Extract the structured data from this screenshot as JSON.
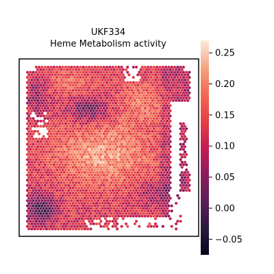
{
  "chart_data": {
    "type": "heatmap",
    "title_line1": "UKF334",
    "title_line2": "Heme Metabolism activity",
    "colorbar": {
      "cmap": "rocket",
      "vmin": -0.075,
      "vmax": 0.27,
      "ticks": [
        "0.25",
        "0.20",
        "0.15",
        "0.10",
        "0.05",
        "0.00",
        "−0.05"
      ],
      "tick_values": [
        0.25,
        0.2,
        0.15,
        0.1,
        0.05,
        0.0,
        -0.05
      ]
    },
    "grid": false,
    "axes_ticks_visible": false,
    "colors": {
      "frame": "#000000",
      "background": "#ffffff"
    }
  }
}
